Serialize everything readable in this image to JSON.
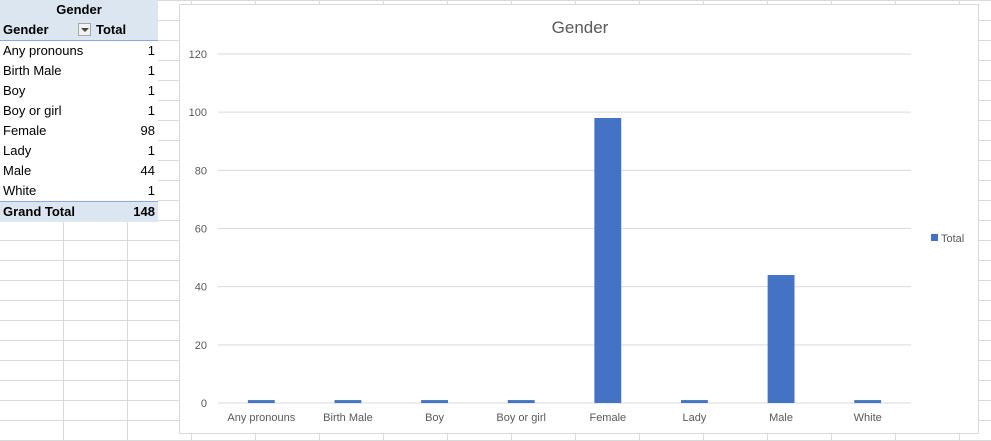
{
  "pivot": {
    "caption": "Gender",
    "header": {
      "row_label": "Gender",
      "value_label": "Total"
    },
    "rows": [
      {
        "label": "Any pronouns",
        "value": "1"
      },
      {
        "label": "Birth Male",
        "value": "1"
      },
      {
        "label": "Boy",
        "value": "1"
      },
      {
        "label": "Boy or girl",
        "value": "1"
      },
      {
        "label": "Female",
        "value": "98"
      },
      {
        "label": "Lady",
        "value": "1"
      },
      {
        "label": "Male",
        "value": "44"
      },
      {
        "label": "White",
        "value": "1"
      }
    ],
    "grand_total": {
      "label": "Grand Total",
      "value": "148"
    }
  },
  "colors": {
    "bar": "#4472c4",
    "pivot_header": "#dce6f1",
    "gridline": "#d9d9d9"
  },
  "chart_data": {
    "type": "bar",
    "title": "Gender",
    "categories": [
      "Any pronouns",
      "Birth Male",
      "Boy",
      "Boy or girl",
      "Female",
      "Lady",
      "Male",
      "White"
    ],
    "series": [
      {
        "name": "Total",
        "values": [
          1,
          1,
          1,
          1,
          98,
          1,
          44,
          1
        ]
      }
    ],
    "ylim": [
      0,
      120
    ],
    "yticks": [
      0,
      20,
      40,
      60,
      80,
      100,
      120
    ],
    "grid": true,
    "legend": "right"
  }
}
